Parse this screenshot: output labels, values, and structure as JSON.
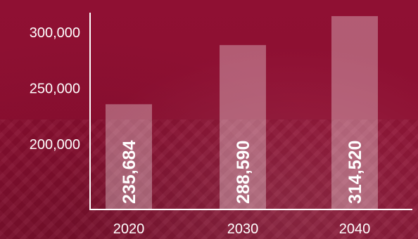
{
  "chart_data": {
    "type": "bar",
    "categories": [
      "2020",
      "2030",
      "2040"
    ],
    "values": [
      235684,
      288590,
      314520
    ],
    "value_labels": [
      "235,684",
      "288,590",
      "314,520"
    ],
    "title": "",
    "xlabel": "",
    "ylabel": "",
    "yticks": [
      200000,
      250000,
      300000
    ],
    "ytick_labels": [
      "200,000",
      "250,000",
      "300,000"
    ],
    "ylim": [
      140000,
      320000
    ],
    "grid": false,
    "legend": "none",
    "colors": {
      "background": "#8f0f30",
      "bar": "#ffffff",
      "bar_opacity": 0.32,
      "axis": "#ffffff",
      "text": "#ffffff"
    }
  }
}
